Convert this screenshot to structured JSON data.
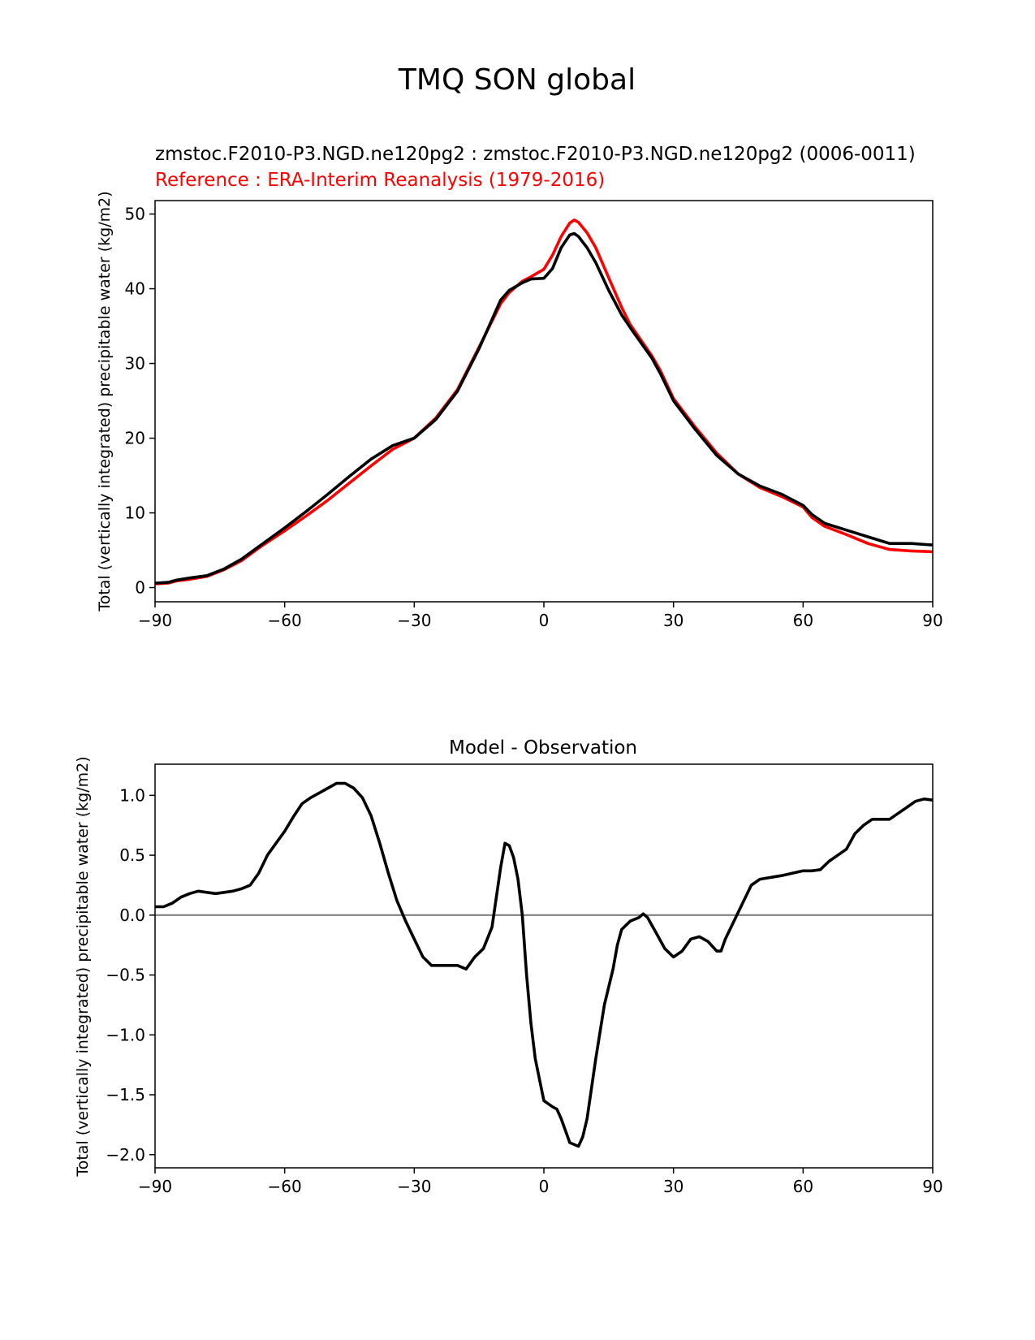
{
  "figure": {
    "title": "TMQ SON global"
  },
  "chart_data": [
    {
      "type": "line",
      "title": "zmstoc.F2010-P3.NGD.ne120pg2 : zmstoc.F2010-P3.NGD.ne120pg2 (0006-0011)",
      "subtitle": "Reference : ERA-Interim Reanalysis (1979-2016)",
      "title_color": "#000000",
      "subtitle_color": "#ff0000",
      "xlabel": "",
      "ylabel": "Total (vertically integrated) precipitable water (kg/m2)",
      "xlim": [
        -90,
        90
      ],
      "ylim": [
        -1.9,
        51.8
      ],
      "xticks": [
        -90,
        -60,
        -30,
        0,
        30,
        60,
        90
      ],
      "xtick_labels": [
        "−90",
        "−60",
        "−30",
        "0",
        "30",
        "60",
        "90"
      ],
      "yticks": [
        0,
        10,
        20,
        30,
        40,
        50
      ],
      "ytick_labels": [
        "0",
        "10",
        "20",
        "30",
        "40",
        "50"
      ],
      "grid": false,
      "series": [
        {
          "color": "#ff0000",
          "x": [
            -90,
            -87,
            -85,
            -82,
            -78,
            -74,
            -70,
            -65,
            -60,
            -55,
            -50,
            -45,
            -40,
            -35,
            -30,
            -25,
            -20,
            -15,
            -10,
            -8,
            -5,
            -3,
            0,
            2,
            4,
            6,
            7,
            8,
            10,
            12,
            15,
            18,
            20,
            25,
            27,
            30,
            35,
            40,
            45,
            50,
            55,
            60,
            62,
            65,
            70,
            75,
            80,
            85,
            90
          ],
          "y": [
            0.5,
            0.6,
            0.9,
            1.1,
            1.5,
            2.4,
            3.6,
            5.7,
            7.6,
            9.6,
            11.7,
            14.0,
            16.3,
            18.5,
            20.0,
            22.7,
            26.5,
            32.2,
            38.0,
            39.5,
            41.0,
            41.6,
            42.6,
            44.5,
            47.0,
            48.8,
            49.2,
            48.9,
            47.5,
            45.5,
            41.5,
            37.5,
            35.2,
            31.0,
            29.0,
            25.3,
            21.5,
            18.0,
            15.2,
            13.4,
            12.2,
            10.8,
            9.4,
            8.2,
            7.1,
            5.9,
            5.1,
            4.9,
            4.8
          ]
        },
        {
          "color": "#000000",
          "x": [
            -90,
            -87,
            -85,
            -82,
            -78,
            -74,
            -70,
            -65,
            -60,
            -55,
            -50,
            -45,
            -40,
            -35,
            -30,
            -25,
            -20,
            -15,
            -10,
            -8,
            -5,
            -3,
            0,
            2,
            4,
            6,
            7,
            8,
            10,
            12,
            15,
            18,
            20,
            25,
            27,
            30,
            35,
            40,
            45,
            50,
            55,
            60,
            62,
            65,
            70,
            75,
            80,
            85,
            90
          ],
          "y": [
            0.6,
            0.7,
            1.0,
            1.3,
            1.6,
            2.5,
            3.8,
            5.9,
            8.0,
            10.2,
            12.5,
            14.9,
            17.2,
            19.0,
            20.0,
            22.5,
            26.3,
            32.0,
            38.5,
            39.8,
            40.8,
            41.3,
            41.4,
            42.7,
            45.5,
            47.2,
            47.4,
            47.0,
            45.5,
            43.5,
            39.8,
            36.5,
            34.8,
            30.7,
            28.6,
            25.0,
            21.2,
            17.7,
            15.2,
            13.6,
            12.5,
            11.0,
            9.8,
            8.6,
            7.7,
            6.8,
            5.9,
            5.9,
            5.7
          ]
        }
      ]
    },
    {
      "type": "line",
      "title": "Model - Observation",
      "xlabel": "",
      "ylabel": "Total (vertically integrated) precipitable water (kg/m2)",
      "xlim": [
        -90,
        90
      ],
      "ylim": [
        -2.11,
        1.26
      ],
      "xticks": [
        -90,
        -60,
        -30,
        0,
        30,
        60,
        90
      ],
      "xtick_labels": [
        "−90",
        "−60",
        "−30",
        "0",
        "30",
        "60",
        "90"
      ],
      "yticks": [
        1.0,
        0.5,
        0.0,
        -0.5,
        -1.0,
        -1.5,
        -2.0
      ],
      "ytick_labels": [
        "1.0",
        "0.5",
        "0.0",
        "−0.5",
        "−1.0",
        "−1.5",
        "−2.0"
      ],
      "reference_line": 0.0,
      "reference_color": "#808080",
      "grid": false,
      "series": [
        {
          "color": "#000000",
          "x": [
            -90,
            -88,
            -86,
            -84,
            -82,
            -80,
            -78,
            -76,
            -74,
            -72,
            -70,
            -68,
            -66,
            -64,
            -62,
            -60,
            -58,
            -56,
            -54,
            -52,
            -50,
            -48,
            -46,
            -44,
            -42,
            -40,
            -38,
            -36,
            -34,
            -32,
            -30,
            -28,
            -26,
            -24,
            -22,
            -20,
            -18,
            -16,
            -14,
            -12,
            -10,
            -9,
            -8,
            -7,
            -6,
            -5,
            -4,
            -3,
            -2,
            0,
            2,
            3,
            4,
            6,
            8,
            9,
            10,
            12,
            14,
            16,
            17,
            18,
            20,
            22,
            23,
            24,
            26,
            28,
            30,
            32,
            34,
            36,
            38,
            40,
            41,
            42,
            44,
            46,
            48,
            50,
            55,
            60,
            62,
            64,
            66,
            70,
            72,
            74,
            76,
            80,
            84,
            86,
            88,
            90
          ],
          "y": [
            0.07,
            0.07,
            0.1,
            0.15,
            0.18,
            0.2,
            0.19,
            0.18,
            0.19,
            0.2,
            0.22,
            0.25,
            0.35,
            0.5,
            0.6,
            0.7,
            0.82,
            0.93,
            0.98,
            1.02,
            1.06,
            1.1,
            1.1,
            1.06,
            0.98,
            0.83,
            0.6,
            0.35,
            0.12,
            -0.05,
            -0.2,
            -0.35,
            -0.42,
            -0.42,
            -0.42,
            -0.42,
            -0.45,
            -0.35,
            -0.28,
            -0.1,
            0.4,
            0.6,
            0.58,
            0.48,
            0.3,
            0.0,
            -0.5,
            -0.9,
            -1.2,
            -1.55,
            -1.6,
            -1.62,
            -1.7,
            -1.9,
            -1.93,
            -1.85,
            -1.7,
            -1.2,
            -0.75,
            -0.45,
            -0.25,
            -0.12,
            -0.05,
            -0.02,
            0.01,
            -0.02,
            -0.15,
            -0.28,
            -0.35,
            -0.3,
            -0.2,
            -0.18,
            -0.22,
            -0.3,
            -0.3,
            -0.2,
            -0.05,
            0.1,
            0.25,
            0.3,
            0.33,
            0.37,
            0.37,
            0.38,
            0.45,
            0.55,
            0.68,
            0.75,
            0.8,
            0.8,
            0.9,
            0.95,
            0.97,
            0.96
          ]
        }
      ]
    }
  ]
}
